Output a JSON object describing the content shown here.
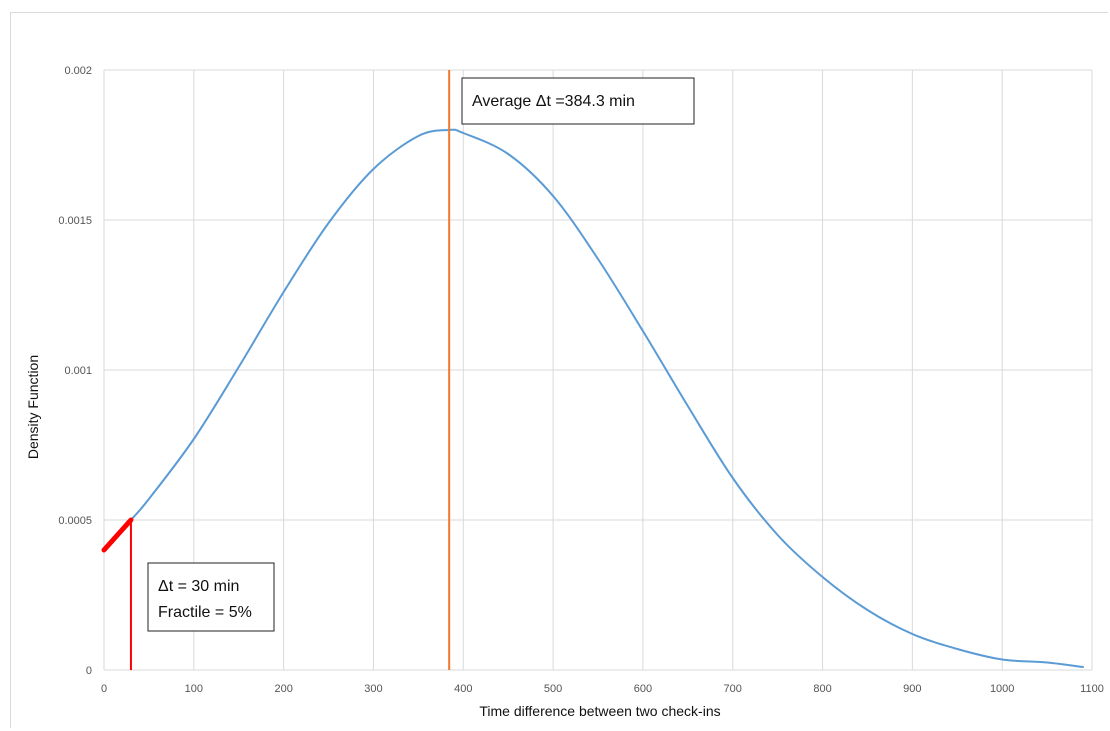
{
  "chart_data": {
    "type": "line",
    "xlabel": "Time difference between two check-ins",
    "ylabel": "Density Function",
    "xlim": [
      0,
      1100
    ],
    "ylim": [
      0,
      0.002
    ],
    "x_ticks": [
      "0",
      "100",
      "200",
      "300",
      "400",
      "500",
      "600",
      "700",
      "800",
      "900",
      "1000",
      "1100"
    ],
    "y_ticks": [
      "0",
      "0.0005",
      "0.001",
      "0.0015",
      "0.002"
    ],
    "grid": true,
    "series": [
      {
        "color": "#5b9bd5",
        "x": [
          30,
          50,
          100,
          150,
          200,
          250,
          300,
          350,
          384.3,
          400,
          450,
          500,
          550,
          600,
          650,
          700,
          750,
          800,
          850,
          900,
          950,
          1000,
          1050,
          1090
        ],
        "y": [
          0.0005,
          0.00057,
          0.00077,
          0.00101,
          0.00126,
          0.00149,
          0.00167,
          0.00178,
          0.0018,
          0.00179,
          0.00172,
          0.00158,
          0.00137,
          0.00113,
          0.00088,
          0.00064,
          0.00045,
          0.00031,
          0.0002,
          0.00012,
          7e-05,
          3.5e-05,
          2.5e-05,
          1e-05
        ]
      },
      {
        "color": "#ff0000",
        "x": [
          0,
          30
        ],
        "y": [
          0.0004,
          0.0005
        ]
      }
    ],
    "vlines": [
      {
        "x": 384.3,
        "color": "#f4772e"
      },
      {
        "x": 30,
        "color": "#ff0000"
      }
    ],
    "annotations": [
      {
        "lines": [
          "Average Δt =384.3 min"
        ]
      },
      {
        "lines": [
          "Δt = 30 min",
          "Fractile = 5%"
        ]
      }
    ]
  }
}
